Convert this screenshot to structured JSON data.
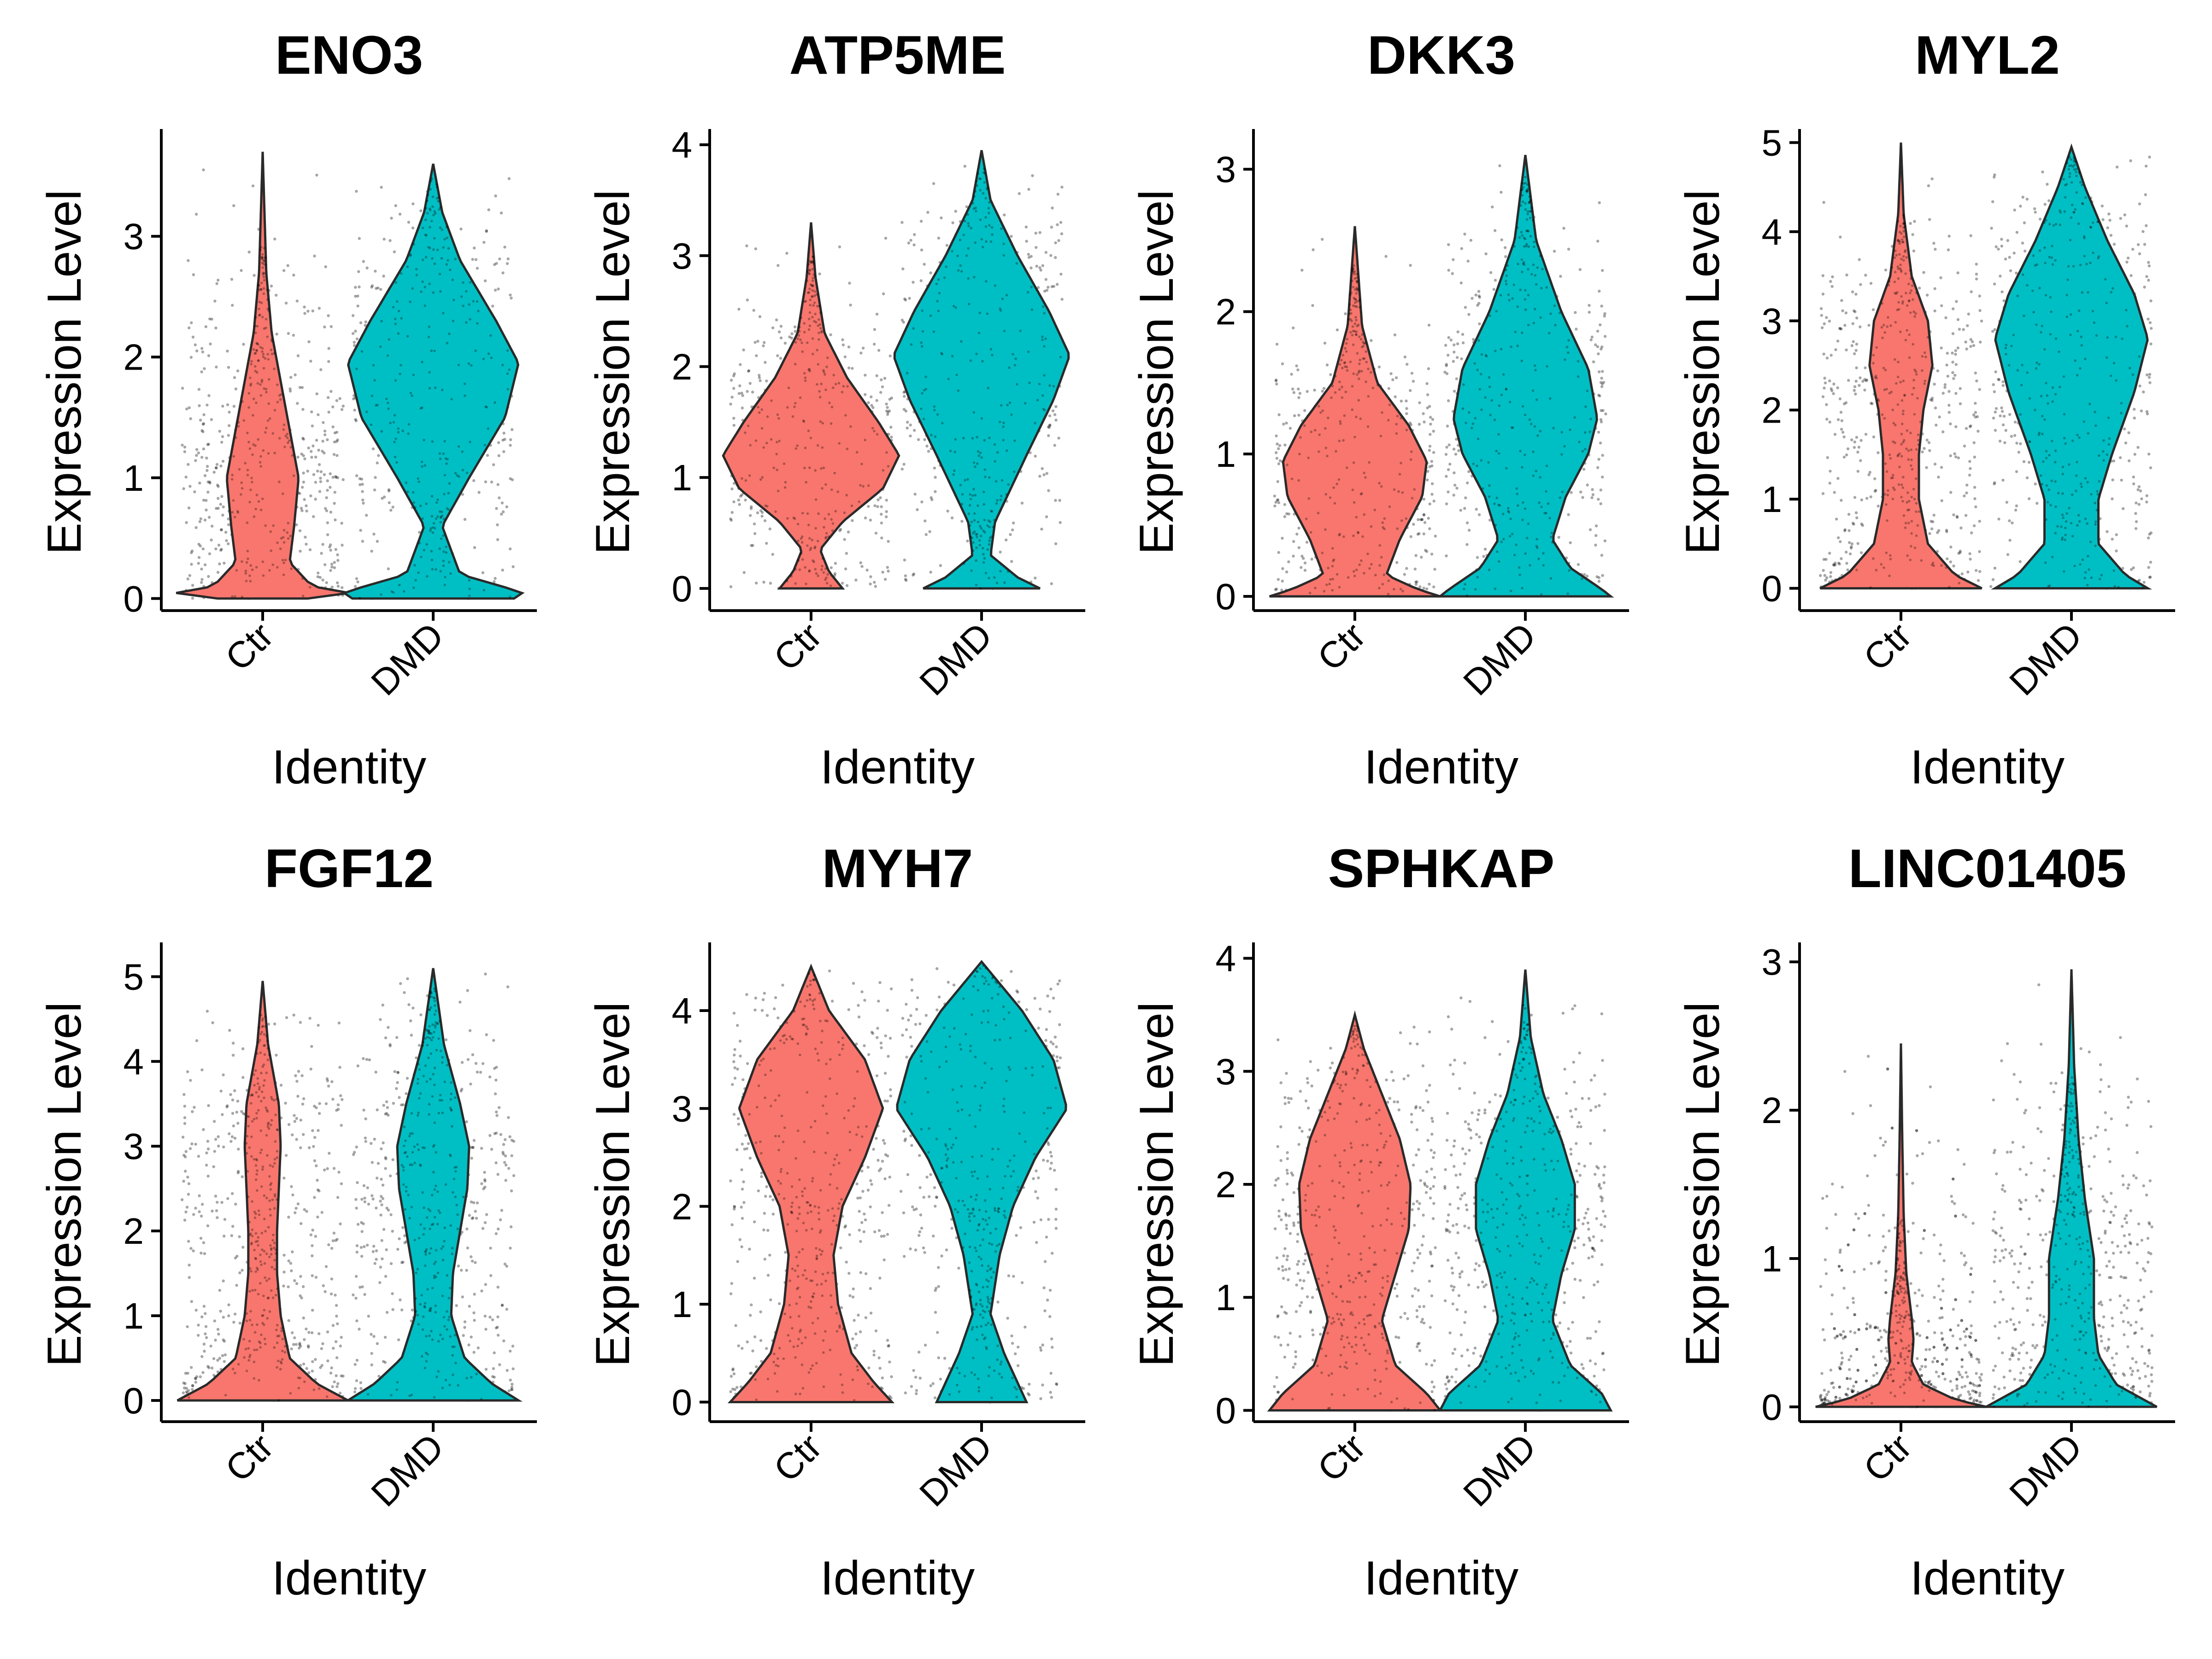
{
  "chart_data": [
    {
      "type": "violin",
      "title": "ENO3",
      "xlabel": "Identity",
      "ylabel": "Expression Level",
      "categories": [
        "Ctr",
        "DMD"
      ],
      "ylim": [
        -0.1,
        3.85
      ],
      "yticks": [
        0,
        1,
        2,
        3
      ],
      "colors": [
        "#F8766D",
        "#00BFC4"
      ],
      "max": [
        3.7,
        3.6
      ],
      "violins": [
        {
          "profile": [
            [
              0,
              0.5
            ],
            [
              0.05,
              1.0
            ],
            [
              0.1,
              0.55
            ],
            [
              0.3,
              0.3
            ],
            [
              0.6,
              0.35
            ],
            [
              1.0,
              0.4
            ],
            [
              1.4,
              0.3
            ],
            [
              1.8,
              0.2
            ],
            [
              2.2,
              0.1
            ],
            [
              2.7,
              0.04
            ],
            [
              3.7,
              0.0
            ]
          ]
        },
        {
          "profile": [
            [
              0,
              0.9
            ],
            [
              0.05,
              1.0
            ],
            [
              0.2,
              0.3
            ],
            [
              0.6,
              0.1
            ],
            [
              1.0,
              0.4
            ],
            [
              1.5,
              0.8
            ],
            [
              1.95,
              0.95
            ],
            [
              2.3,
              0.7
            ],
            [
              2.8,
              0.3
            ],
            [
              3.2,
              0.1
            ],
            [
              3.6,
              0.0
            ]
          ]
        }
      ]
    },
    {
      "type": "violin",
      "title": "ATP5ME",
      "xlabel": "Identity",
      "ylabel": "Expression Level",
      "categories": [
        "Ctr",
        "DMD"
      ],
      "ylim": [
        -0.2,
        4.1
      ],
      "yticks": [
        0,
        1,
        2,
        3,
        4
      ],
      "colors": [
        "#F8766D",
        "#00BFC4"
      ],
      "max": [
        3.3,
        3.95
      ],
      "violins": [
        {
          "profile": [
            [
              0,
              0.35
            ],
            [
              0.15,
              0.2
            ],
            [
              0.35,
              0.1
            ],
            [
              0.6,
              0.35
            ],
            [
              0.9,
              0.8
            ],
            [
              1.2,
              0.98
            ],
            [
              1.5,
              0.75
            ],
            [
              1.9,
              0.4
            ],
            [
              2.3,
              0.15
            ],
            [
              2.8,
              0.05
            ],
            [
              3.3,
              0.0
            ]
          ]
        },
        {
          "profile": [
            [
              0,
              0.65
            ],
            [
              0.1,
              0.4
            ],
            [
              0.3,
              0.1
            ],
            [
              0.6,
              0.15
            ],
            [
              1.2,
              0.5
            ],
            [
              1.7,
              0.8
            ],
            [
              2.1,
              0.98
            ],
            [
              2.5,
              0.75
            ],
            [
              3.0,
              0.4
            ],
            [
              3.5,
              0.1
            ],
            [
              3.95,
              0.0
            ]
          ]
        }
      ]
    },
    {
      "type": "violin",
      "title": "DKK3",
      "xlabel": "Identity",
      "ylabel": "Expression Level",
      "categories": [
        "Ctr",
        "DMD"
      ],
      "ylim": [
        -0.1,
        3.25
      ],
      "yticks": [
        0,
        1,
        2,
        3
      ],
      "colors": [
        "#F8766D",
        "#00BFC4"
      ],
      "max": [
        2.6,
        3.1
      ],
      "violins": [
        {
          "profile": [
            [
              0,
              0.95
            ],
            [
              0.05,
              0.7
            ],
            [
              0.15,
              0.35
            ],
            [
              0.4,
              0.5
            ],
            [
              0.7,
              0.75
            ],
            [
              0.95,
              0.8
            ],
            [
              1.2,
              0.6
            ],
            [
              1.5,
              0.25
            ],
            [
              1.9,
              0.08
            ],
            [
              2.6,
              0.0
            ]
          ]
        },
        {
          "profile": [
            [
              0,
              0.95
            ],
            [
              0.05,
              0.85
            ],
            [
              0.2,
              0.5
            ],
            [
              0.4,
              0.3
            ],
            [
              0.7,
              0.45
            ],
            [
              1.0,
              0.7
            ],
            [
              1.25,
              0.8
            ],
            [
              1.6,
              0.7
            ],
            [
              2.0,
              0.4
            ],
            [
              2.5,
              0.12
            ],
            [
              3.1,
              0.0
            ]
          ]
        }
      ]
    },
    {
      "type": "violin",
      "title": "MYL2",
      "xlabel": "Identity",
      "ylabel": "Expression Level",
      "categories": [
        "Ctr",
        "DMD"
      ],
      "ylim": [
        -0.25,
        5.1
      ],
      "yticks": [
        0,
        1,
        2,
        3,
        4,
        5
      ],
      "colors": [
        "#F8766D",
        "#00BFC4"
      ],
      "max": [
        5.0,
        4.95
      ],
      "violins": [
        {
          "profile": [
            [
              0,
              0.9
            ],
            [
              0.15,
              0.6
            ],
            [
              0.5,
              0.3
            ],
            [
              1.0,
              0.2
            ],
            [
              1.5,
              0.2
            ],
            [
              2.0,
              0.25
            ],
            [
              2.5,
              0.35
            ],
            [
              3.0,
              0.3
            ],
            [
              3.5,
              0.12
            ],
            [
              4.2,
              0.03
            ],
            [
              5.0,
              0.0
            ]
          ]
        },
        {
          "profile": [
            [
              0,
              0.85
            ],
            [
              0.15,
              0.6
            ],
            [
              0.5,
              0.3
            ],
            [
              1.0,
              0.3
            ],
            [
              1.5,
              0.45
            ],
            [
              2.2,
              0.7
            ],
            [
              2.8,
              0.85
            ],
            [
              3.3,
              0.7
            ],
            [
              3.9,
              0.4
            ],
            [
              4.5,
              0.15
            ],
            [
              4.95,
              0.0
            ]
          ]
        }
      ]
    },
    {
      "type": "violin",
      "title": "FGF12",
      "xlabel": "Identity",
      "ylabel": "Expression Level",
      "categories": [
        "Ctr",
        "DMD"
      ],
      "ylim": [
        -0.25,
        5.35
      ],
      "yticks": [
        0,
        1,
        2,
        3,
        4,
        5
      ],
      "colors": [
        "#F8766D",
        "#00BFC4"
      ],
      "max": [
        4.95,
        5.1
      ],
      "violins": [
        {
          "profile": [
            [
              0,
              0.95
            ],
            [
              0.2,
              0.6
            ],
            [
              0.5,
              0.3
            ],
            [
              1.0,
              0.2
            ],
            [
              1.5,
              0.16
            ],
            [
              2.0,
              0.16
            ],
            [
              2.5,
              0.18
            ],
            [
              3.0,
              0.2
            ],
            [
              3.5,
              0.18
            ],
            [
              4.2,
              0.06
            ],
            [
              4.95,
              0.0
            ]
          ]
        },
        {
          "profile": [
            [
              0,
              0.95
            ],
            [
              0.2,
              0.65
            ],
            [
              0.5,
              0.35
            ],
            [
              1.0,
              0.2
            ],
            [
              1.5,
              0.22
            ],
            [
              2.0,
              0.3
            ],
            [
              2.5,
              0.38
            ],
            [
              3.0,
              0.4
            ],
            [
              3.5,
              0.3
            ],
            [
              4.2,
              0.12
            ],
            [
              5.1,
              0.0
            ]
          ]
        }
      ]
    },
    {
      "type": "violin",
      "title": "MYH7",
      "xlabel": "Identity",
      "ylabel": "Expression Level",
      "categories": [
        "Ctr",
        "DMD"
      ],
      "ylim": [
        -0.2,
        4.65
      ],
      "yticks": [
        0,
        1,
        2,
        3,
        4
      ],
      "colors": [
        "#F8766D",
        "#00BFC4"
      ],
      "max": [
        4.45,
        4.5
      ],
      "violins": [
        {
          "profile": [
            [
              0,
              0.9
            ],
            [
              0.2,
              0.7
            ],
            [
              0.5,
              0.45
            ],
            [
              1.0,
              0.3
            ],
            [
              1.5,
              0.25
            ],
            [
              2.0,
              0.35
            ],
            [
              2.5,
              0.6
            ],
            [
              3.0,
              0.8
            ],
            [
              3.5,
              0.6
            ],
            [
              4.0,
              0.2
            ],
            [
              4.45,
              0.0
            ]
          ]
        },
        {
          "profile": [
            [
              0,
              0.5
            ],
            [
              0.2,
              0.4
            ],
            [
              0.5,
              0.25
            ],
            [
              0.9,
              0.1
            ],
            [
              1.5,
              0.2
            ],
            [
              2.0,
              0.35
            ],
            [
              2.5,
              0.6
            ],
            [
              3.0,
              0.95
            ],
            [
              3.5,
              0.8
            ],
            [
              4.0,
              0.45
            ],
            [
              4.5,
              0.0
            ]
          ]
        }
      ]
    },
    {
      "type": "violin",
      "title": "SPHKAP",
      "xlabel": "Identity",
      "ylabel": "Expression Level",
      "categories": [
        "Ctr",
        "DMD"
      ],
      "ylim": [
        -0.1,
        4.1
      ],
      "yticks": [
        0,
        1,
        2,
        3,
        4
      ],
      "colors": [
        "#F8766D",
        "#00BFC4"
      ],
      "max": [
        3.5,
        3.9
      ],
      "violins": [
        {
          "profile": [
            [
              0,
              0.95
            ],
            [
              0.15,
              0.8
            ],
            [
              0.4,
              0.45
            ],
            [
              0.8,
              0.3
            ],
            [
              1.2,
              0.45
            ],
            [
              1.6,
              0.6
            ],
            [
              2.0,
              0.62
            ],
            [
              2.4,
              0.5
            ],
            [
              2.8,
              0.3
            ],
            [
              3.2,
              0.1
            ],
            [
              3.5,
              0.0
            ]
          ]
        },
        {
          "profile": [
            [
              0,
              0.95
            ],
            [
              0.15,
              0.85
            ],
            [
              0.4,
              0.5
            ],
            [
              0.8,
              0.3
            ],
            [
              1.2,
              0.4
            ],
            [
              1.6,
              0.55
            ],
            [
              2.0,
              0.55
            ],
            [
              2.4,
              0.4
            ],
            [
              2.8,
              0.2
            ],
            [
              3.3,
              0.06
            ],
            [
              3.9,
              0.0
            ]
          ]
        }
      ]
    },
    {
      "type": "violin",
      "title": "LINC01405",
      "xlabel": "Identity",
      "ylabel": "Expression Level",
      "categories": [
        "Ctr",
        "DMD"
      ],
      "ylim": [
        -0.1,
        3.1
      ],
      "yticks": [
        0,
        1,
        2,
        3
      ],
      "colors": [
        "#F8766D",
        "#00BFC4"
      ],
      "max": [
        2.45,
        2.95
      ],
      "violins": [
        {
          "profile": [
            [
              0,
              0.95
            ],
            [
              0.05,
              0.6
            ],
            [
              0.15,
              0.25
            ],
            [
              0.3,
              0.12
            ],
            [
              0.45,
              0.14
            ],
            [
              0.6,
              0.12
            ],
            [
              0.9,
              0.06
            ],
            [
              1.3,
              0.03
            ],
            [
              1.8,
              0.015
            ],
            [
              2.45,
              0.0
            ]
          ]
        },
        {
          "profile": [
            [
              0,
              0.95
            ],
            [
              0.05,
              0.8
            ],
            [
              0.15,
              0.5
            ],
            [
              0.35,
              0.3
            ],
            [
              0.6,
              0.25
            ],
            [
              1.0,
              0.25
            ],
            [
              1.4,
              0.15
            ],
            [
              1.8,
              0.08
            ],
            [
              2.3,
              0.03
            ],
            [
              2.95,
              0.0
            ]
          ]
        }
      ]
    }
  ]
}
